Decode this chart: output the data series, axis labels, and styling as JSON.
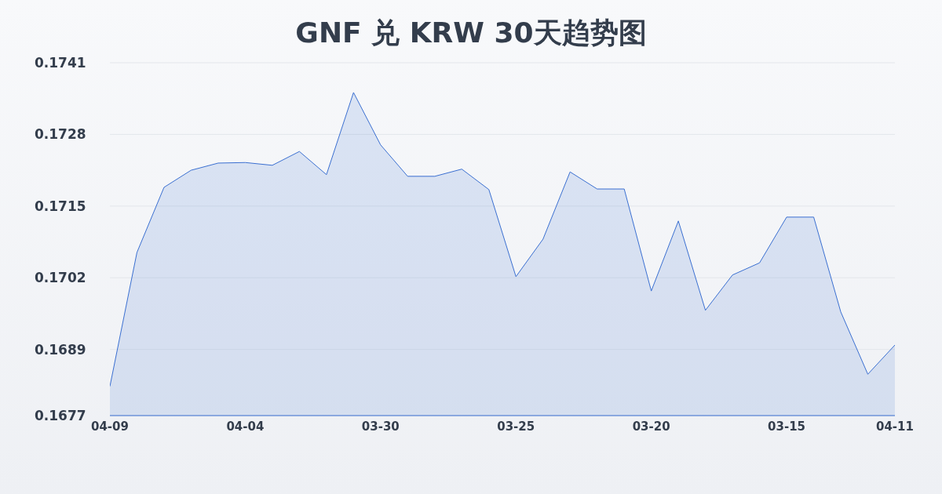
{
  "chart_data": {
    "type": "area",
    "title": "GNF 兑 KRW 30天趋势图",
    "categories": [
      "04-09",
      null,
      null,
      null,
      null,
      "04-04",
      null,
      null,
      null,
      null,
      "03-30",
      null,
      null,
      null,
      null,
      "03-25",
      null,
      null,
      null,
      null,
      "03-20",
      null,
      null,
      null,
      null,
      "03-15",
      null,
      null,
      null,
      "04-11"
    ],
    "series": [
      {
        "color": "#3a6fd1",
        "values": [
          0.16823,
          0.17066,
          0.17184,
          0.17215,
          0.17228,
          0.17229,
          0.17224,
          0.17249,
          0.17207,
          0.17356,
          0.17261,
          0.17204,
          0.17204,
          0.17217,
          0.1718,
          0.17022,
          0.1709,
          0.17212,
          0.17181,
          0.17181,
          0.16996,
          0.17123,
          0.16961,
          0.17025,
          0.17047,
          0.1713,
          0.1713,
          0.16958,
          0.16845,
          0.16898
        ]
      }
    ],
    "ylim": [
      0.1677,
      0.1741
    ],
    "yticks": [
      0.1677,
      0.1689,
      0.1702,
      0.1715,
      0.1728,
      0.1741
    ],
    "grid": "y",
    "marker": "none",
    "line_style": "solid"
  }
}
